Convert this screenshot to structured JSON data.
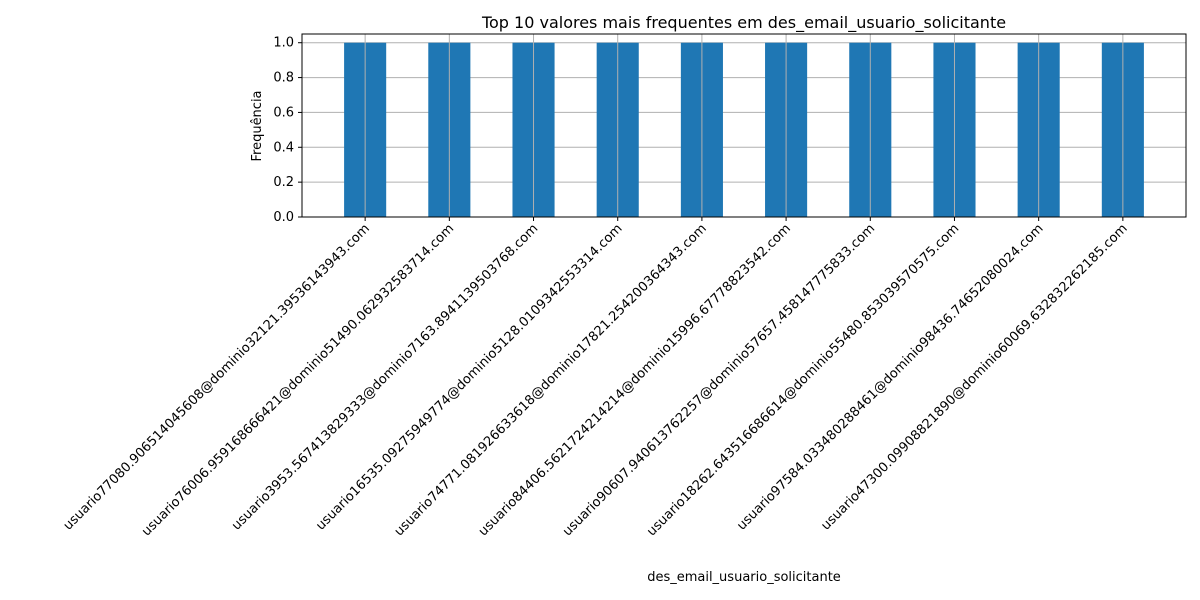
{
  "chart_data": {
    "type": "bar",
    "title": "Top 10 valores mais frequentes em des_email_usuario_solicitante",
    "xlabel": "des_email_usuario_solicitante",
    "ylabel": "Frequência",
    "categories": [
      "usuario77080.90651404560 8@dominio32121.39536143943.com",
      "usuario76006.95916866642 1@dominio51490.06293258371 4.com",
      "usuario3953.567413829333@dominio7163.894113950376 8.com",
      "usuario16535.09275949774@dominio5128.010934255331 4.com",
      "usuario74771.08192663361 8@dominio17821.25420036434 3.com",
      "usuario84406.56217242142 14@dominio15996.67778823542.com",
      "usuario90607.94061376225 7@dominio57657.45814777583 3.com",
      "usuario18262.64351668661 4@dominio55480.85303957057 5.com",
      "usuario97584.03348028846 1@dominio98436.74652080024.com",
      "usuario47300.09908821890@dominio60069.63283226218 5.com"
    ],
    "values": [
      1,
      1,
      1,
      1,
      1,
      1,
      1,
      1,
      1,
      1
    ],
    "ylim": [
      0,
      1.05
    ],
    "yticks": [
      "0.0",
      "0.2",
      "0.4",
      "0.6",
      "0.8",
      "1.0"
    ],
    "grid": true,
    "bar_color": "#1f77b4",
    "grid_color": "#b0b0b0"
  }
}
